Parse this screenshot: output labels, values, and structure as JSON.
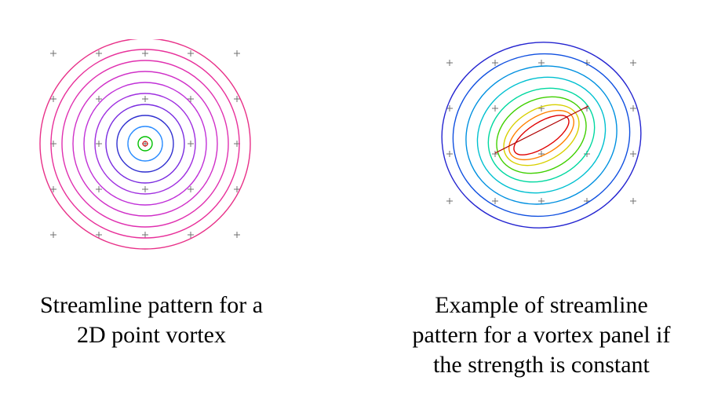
{
  "figures": [
    {
      "caption_lines": [
        "Streamline pattern for a",
        "2D point vortex"
      ],
      "contour_colors": [
        "#00c000",
        "#2a8cff",
        "#3030d0",
        "#7a2be0",
        "#a030e0",
        "#c030d8",
        "#d030c8",
        "#e030b0",
        "#e8309a",
        "#e83088"
      ]
    },
    {
      "caption_lines": [
        "Example of streamline",
        "pattern for a vortex panel if",
        "the strength is constant"
      ],
      "contour_colors": [
        "#2424d0",
        "#1050e0",
        "#0090e0",
        "#00c0d0",
        "#00d8a0",
        "#40d000",
        "#d8d000",
        "#ff8000",
        "#e00000"
      ]
    }
  ],
  "marker_color": "#707070"
}
